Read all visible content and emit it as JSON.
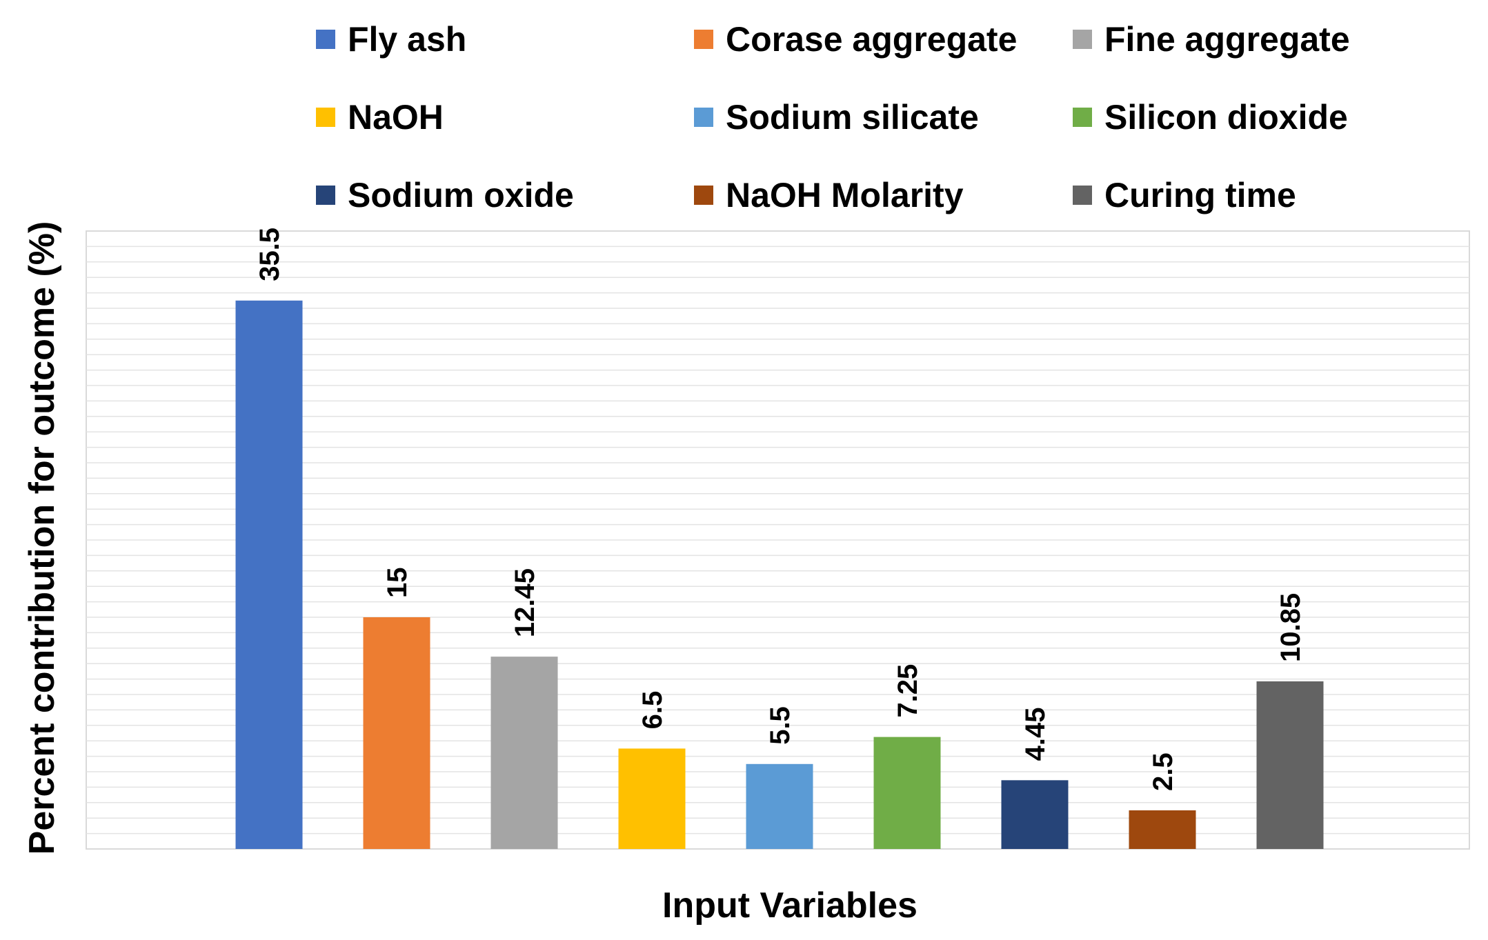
{
  "chart_data": {
    "type": "bar",
    "title": "",
    "xlabel": "Input Variables",
    "ylabel": "Percent contribution for outcome (%)",
    "ylim": [
      0,
      40
    ],
    "grid": true,
    "legend_position": "top",
    "categories": [
      "Fly ash",
      "Corase aggregate",
      "Fine aggregate",
      "NaOH",
      "Sodium silicate",
      "Silicon dioxide",
      "Sodium oxide",
      "NaOH Molarity",
      "Curing time"
    ],
    "values": [
      35.5,
      15,
      12.45,
      6.5,
      5.5,
      7.25,
      4.45,
      2.5,
      10.85
    ],
    "value_labels": [
      "35.5",
      "15",
      "12.45",
      "6.5",
      "5.5",
      "7.25",
      "4.45",
      "2.5",
      "10.85"
    ],
    "colors": [
      "#4472C4",
      "#ED7D31",
      "#A5A5A5",
      "#FFC000",
      "#5B9BD5",
      "#70AD47",
      "#264478",
      "#9E480E",
      "#636363"
    ]
  }
}
